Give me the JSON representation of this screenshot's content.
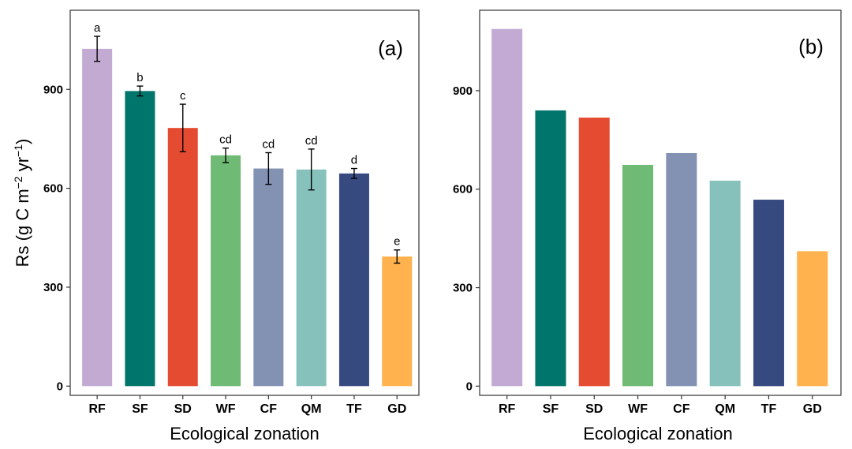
{
  "chart_data": [
    {
      "type": "bar",
      "panel_label": "(a)",
      "categories": [
        "RF",
        "SF",
        "SD",
        "WF",
        "CF",
        "QM",
        "TF",
        "GD"
      ],
      "values": [
        1023,
        895,
        783,
        700,
        660,
        657,
        645,
        393
      ],
      "error": [
        38,
        15,
        72,
        22,
        48,
        62,
        15,
        20
      ],
      "significance_letters": [
        "a",
        "b",
        "c",
        "cd",
        "cd",
        "cd",
        "d",
        "e"
      ],
      "colors": [
        "#c2aad3",
        "#00756c",
        "#e44b31",
        "#6fba74",
        "#8391b3",
        "#86c2bb",
        "#364a80",
        "#ffb24d"
      ],
      "xlabel": "Ecological zonation",
      "ylabel_parts": [
        "Rs (g C m",
        "−2",
        " yr",
        "−1",
        ")"
      ],
      "ylim": [
        -28,
        1140
      ],
      "yticks": [
        0,
        300,
        600,
        900
      ]
    },
    {
      "type": "bar",
      "panel_label": "(b)",
      "categories": [
        "RF",
        "SF",
        "SD",
        "WF",
        "CF",
        "QM",
        "TF",
        "GD"
      ],
      "values": [
        1088,
        840,
        818,
        674,
        710,
        626,
        568,
        411
      ],
      "colors": [
        "#c2aad3",
        "#00756c",
        "#e44b31",
        "#6fba74",
        "#8391b3",
        "#86c2bb",
        "#364a80",
        "#ffb24d"
      ],
      "xlabel": "Ecological zonation",
      "ylim": [
        -28,
        1145
      ],
      "yticks": [
        0,
        300,
        600,
        900
      ]
    }
  ]
}
